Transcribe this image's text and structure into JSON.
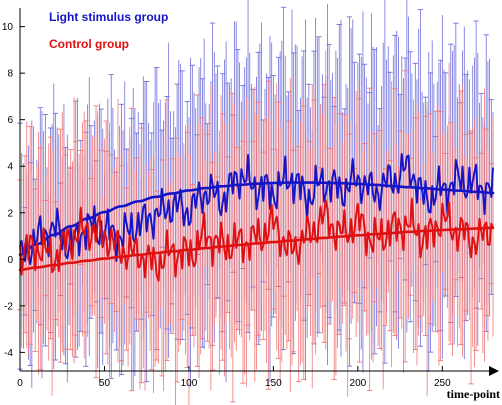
{
  "chart_data": {
    "type": "line",
    "title": "",
    "xlabel": "time-point",
    "ylabel": "",
    "xlim": [
      0,
      280
    ],
    "ylim": [
      -4.8,
      10.8
    ],
    "x_ticks": [
      0,
      50,
      100,
      150,
      200,
      250
    ],
    "y_ticks": [
      -4,
      -2,
      0,
      2,
      4,
      6,
      8,
      10
    ],
    "grid": false,
    "legend_position": "top-left",
    "series": [
      {
        "name": "Light stimulus group",
        "color": "#1515c8",
        "sample_x": [
          0,
          10,
          20,
          30,
          40,
          50,
          60,
          70,
          80,
          90,
          100,
          110,
          120,
          130,
          140,
          150,
          160,
          170,
          180,
          190,
          200,
          210,
          220,
          230,
          240,
          250,
          260,
          270,
          280
        ],
        "mean": [
          0.0,
          0.9,
          1.3,
          0.6,
          1.4,
          1.2,
          1.0,
          1.5,
          1.9,
          2.3,
          2.1,
          2.9,
          2.6,
          3.6,
          3.1,
          2.9,
          3.5,
          2.7,
          3.3,
          3.0,
          3.4,
          2.9,
          3.4,
          3.9,
          2.6,
          3.0,
          3.4,
          3.2,
          2.9
        ],
        "error": [
          3.8,
          4.1,
          4.3,
          4.0,
          4.2,
          4.5,
          4.4,
          4.6,
          4.6,
          4.6,
          4.8,
          4.9,
          5.0,
          5.1,
          5.1,
          5.1,
          5.2,
          5.2,
          5.2,
          5.3,
          5.3,
          5.3,
          5.2,
          5.2,
          5.1,
          5.0,
          4.9,
          4.7,
          4.5
        ],
        "trend": [
          0.2,
          0.65,
          1.05,
          1.42,
          1.75,
          2.03,
          2.28,
          2.49,
          2.68,
          2.83,
          2.96,
          3.06,
          3.14,
          3.2,
          3.25,
          3.28,
          3.3,
          3.3,
          3.29,
          3.27,
          3.24,
          3.2,
          3.15,
          3.1,
          3.05,
          3.0,
          2.95,
          2.9,
          2.85
        ]
      },
      {
        "name": "Control group",
        "color": "#e01010",
        "sample_x": [
          0,
          10,
          20,
          30,
          40,
          50,
          60,
          70,
          80,
          90,
          100,
          110,
          120,
          130,
          140,
          150,
          160,
          170,
          180,
          190,
          200,
          210,
          220,
          230,
          240,
          250,
          260,
          270,
          280
        ],
        "mean": [
          0.3,
          0.5,
          0.1,
          0.9,
          1.3,
          1.0,
          0.4,
          0.2,
          -0.2,
          0.3,
          0.2,
          1.0,
          0.6,
          0.7,
          0.9,
          1.5,
          0.4,
          1.0,
          1.8,
          1.1,
          1.6,
          0.8,
          1.3,
          1.5,
          0.9,
          1.7,
          1.2,
          0.8,
          1.4
        ],
        "error": [
          3.6,
          3.7,
          3.8,
          3.9,
          4.0,
          4.0,
          4.1,
          4.2,
          4.2,
          4.3,
          4.3,
          4.4,
          4.4,
          4.5,
          4.5,
          4.5,
          4.5,
          4.5,
          4.5,
          4.5,
          4.4,
          4.4,
          4.4,
          4.3,
          4.3,
          4.2,
          4.2,
          4.1,
          4.0
        ],
        "trend": [
          -0.45,
          -0.35,
          -0.25,
          -0.15,
          -0.06,
          0.03,
          0.11,
          0.19,
          0.27,
          0.34,
          0.41,
          0.48,
          0.55,
          0.62,
          0.68,
          0.74,
          0.8,
          0.86,
          0.92,
          0.98,
          1.03,
          1.08,
          1.13,
          1.18,
          1.22,
          1.26,
          1.29,
          1.32,
          1.35
        ]
      }
    ]
  }
}
